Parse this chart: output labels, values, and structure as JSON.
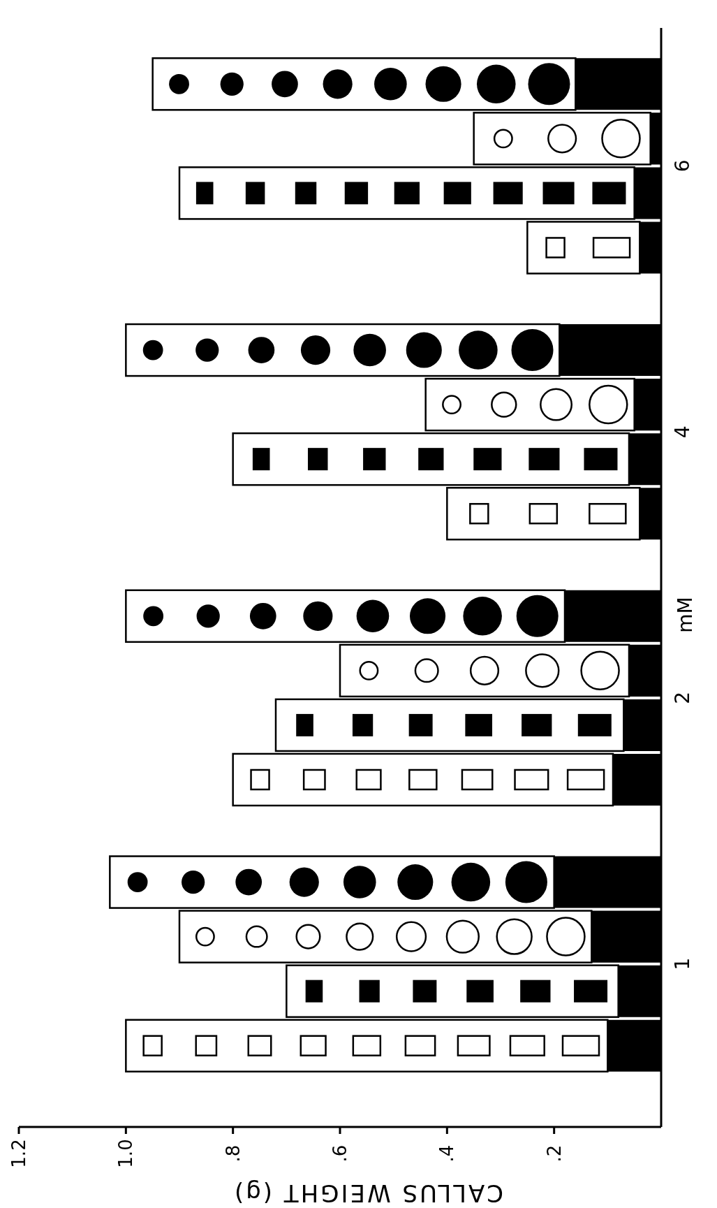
{
  "chart_data": {
    "type": "bar",
    "orientation": "horizontal",
    "xlabel": "CALLUS WEIGHT (g)",
    "ylabel": "mM",
    "categories": [
      "6",
      "4",
      "2",
      "1"
    ],
    "xlim": [
      1.2,
      0
    ],
    "xticks": [
      {
        "value": 1.2,
        "label": "1.2"
      },
      {
        "value": 1.0,
        "label": "1.0"
      },
      {
        "value": 0.8,
        "label": ".8"
      },
      {
        "value": 0.6,
        "label": ".6"
      },
      {
        "value": 0.4,
        "label": ".4"
      },
      {
        "value": 0.2,
        "label": ".2"
      }
    ],
    "series": [
      {
        "color": "#ffffff",
        "base": [
          0.16,
          0.19,
          0.18,
          0.2
        ],
        "values": [
          0.79,
          0.81,
          0.82,
          0.83
        ]
      },
      {
        "color": "#ffffff",
        "base": [
          0.02,
          0.05,
          0.06,
          0.13
        ],
        "values": [
          0.33,
          0.39,
          0.54,
          0.77
        ]
      },
      {
        "color": "#ffffff",
        "base": [
          0.05,
          0.06,
          0.07,
          0.08
        ],
        "values": [
          0.85,
          0.74,
          0.65,
          0.62
        ]
      },
      {
        "color": "#ffffff",
        "base": [
          0.04,
          0.04,
          0.09,
          0.1
        ],
        "values": [
          0.21,
          0.36,
          0.71,
          0.9
        ]
      }
    ]
  }
}
